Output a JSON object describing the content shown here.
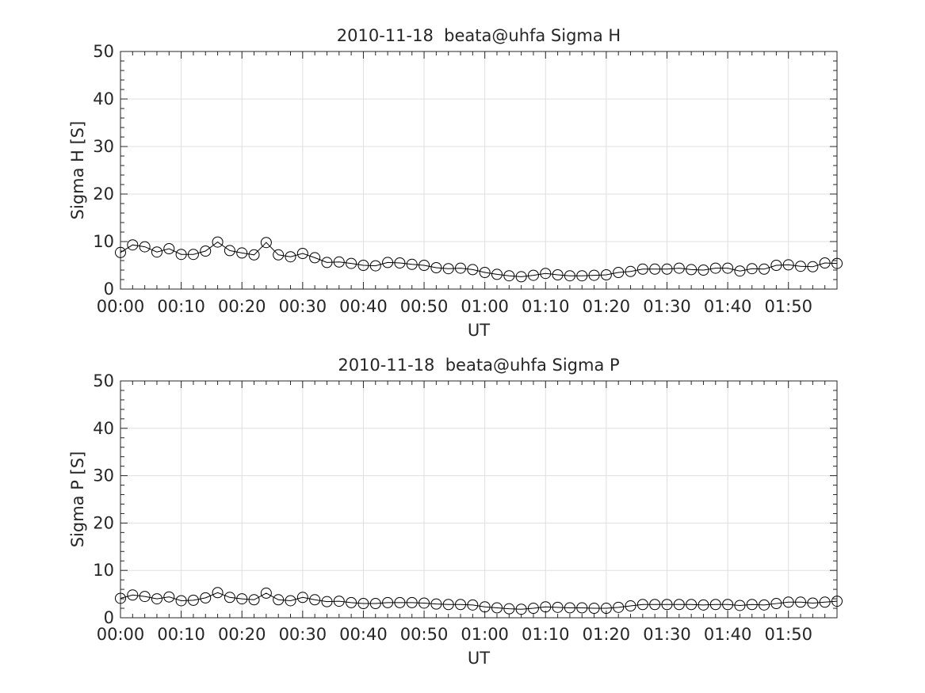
{
  "chart_data": [
    {
      "type": "line",
      "title": "2010-11-18  beata@uhfa Sigma H",
      "xlabel": "UT",
      "ylabel": "Sigma H [S]",
      "xlim": [
        "00:00",
        "01:58"
      ],
      "ylim": [
        0,
        50
      ],
      "yticks": [
        "0",
        "10",
        "20",
        "30",
        "40",
        "50"
      ],
      "xticks": [
        "00:00",
        "00:10",
        "00:20",
        "00:30",
        "00:40",
        "00:50",
        "01:00",
        "01:10",
        "01:20",
        "01:30",
        "01:40",
        "01:50"
      ],
      "grid": true,
      "marker": "circle",
      "x": [
        "00:00",
        "00:02",
        "00:04",
        "00:06",
        "00:08",
        "00:10",
        "00:12",
        "00:14",
        "00:16",
        "00:18",
        "00:20",
        "00:22",
        "00:24",
        "00:26",
        "00:28",
        "00:30",
        "00:32",
        "00:34",
        "00:36",
        "00:38",
        "00:40",
        "00:42",
        "00:44",
        "00:46",
        "00:48",
        "00:50",
        "00:52",
        "00:54",
        "00:56",
        "00:58",
        "01:00",
        "01:02",
        "01:04",
        "01:06",
        "01:08",
        "01:10",
        "01:12",
        "01:14",
        "01:16",
        "01:18",
        "01:20",
        "01:22",
        "01:24",
        "01:26",
        "01:28",
        "01:30",
        "01:32",
        "01:34",
        "01:36",
        "01:38",
        "01:40",
        "01:42",
        "01:44",
        "01:46",
        "01:48",
        "01:50",
        "01:52",
        "01:54",
        "01:56",
        "01:58"
      ],
      "values": [
        7.7,
        9.3,
        8.9,
        7.8,
        8.5,
        7.3,
        7.3,
        8.0,
        9.9,
        8.1,
        7.6,
        7.2,
        9.8,
        7.2,
        6.8,
        7.5,
        6.6,
        5.6,
        5.7,
        5.4,
        5.0,
        4.9,
        5.6,
        5.5,
        5.2,
        5.0,
        4.5,
        4.3,
        4.4,
        4.1,
        3.5,
        3.1,
        2.8,
        2.6,
        2.9,
        3.3,
        3.0,
        2.8,
        2.8,
        2.9,
        3.0,
        3.5,
        3.7,
        4.2,
        4.2,
        4.2,
        4.4,
        4.1,
        4.0,
        4.4,
        4.4,
        3.8,
        4.3,
        4.2,
        5.0,
        5.1,
        4.8,
        4.7,
        5.5,
        5.4
      ]
    },
    {
      "type": "line",
      "title": "2010-11-18  beata@uhfa Sigma P",
      "xlabel": "UT",
      "ylabel": "Sigma P [S]",
      "xlim": [
        "00:00",
        "01:58"
      ],
      "ylim": [
        0,
        50
      ],
      "yticks": [
        "0",
        "10",
        "20",
        "30",
        "40",
        "50"
      ],
      "xticks": [
        "00:00",
        "00:10",
        "00:20",
        "00:30",
        "00:40",
        "00:50",
        "01:00",
        "01:10",
        "01:20",
        "01:30",
        "01:40",
        "01:50"
      ],
      "grid": true,
      "marker": "circle",
      "x": [
        "00:00",
        "00:02",
        "00:04",
        "00:06",
        "00:08",
        "00:10",
        "00:12",
        "00:14",
        "00:16",
        "00:18",
        "00:20",
        "00:22",
        "00:24",
        "00:26",
        "00:28",
        "00:30",
        "00:32",
        "00:34",
        "00:36",
        "00:38",
        "00:40",
        "00:42",
        "00:44",
        "00:46",
        "00:48",
        "00:50",
        "00:52",
        "00:54",
        "00:56",
        "00:58",
        "01:00",
        "01:02",
        "01:04",
        "01:06",
        "01:08",
        "01:10",
        "01:12",
        "01:14",
        "01:16",
        "01:18",
        "01:20",
        "01:22",
        "01:24",
        "01:26",
        "01:28",
        "01:30",
        "01:32",
        "01:34",
        "01:36",
        "01:38",
        "01:40",
        "01:42",
        "01:44",
        "01:46",
        "01:48",
        "01:50",
        "01:52",
        "01:54",
        "01:56",
        "01:58"
      ],
      "values": [
        4.1,
        4.8,
        4.5,
        4.0,
        4.4,
        3.6,
        3.7,
        4.2,
        5.3,
        4.3,
        4.0,
        3.8,
        5.2,
        3.8,
        3.6,
        4.3,
        3.8,
        3.4,
        3.5,
        3.2,
        3.0,
        3.0,
        3.2,
        3.2,
        3.2,
        3.1,
        2.9,
        2.8,
        2.8,
        2.7,
        2.3,
        2.1,
        1.9,
        1.8,
        2.0,
        2.3,
        2.2,
        2.1,
        2.1,
        2.0,
        2.0,
        2.2,
        2.5,
        2.8,
        2.8,
        2.8,
        2.8,
        2.8,
        2.7,
        2.8,
        2.8,
        2.6,
        2.8,
        2.7,
        3.0,
        3.3,
        3.3,
        3.1,
        3.3,
        3.5
      ]
    }
  ]
}
